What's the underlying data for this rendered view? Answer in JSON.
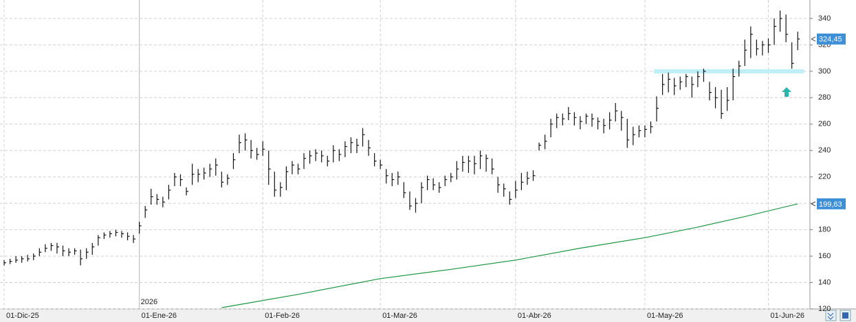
{
  "chart_data": {
    "type": "ohlc",
    "categories": [
      "01-Dic-25",
      null,
      null,
      null,
      null,
      null,
      null,
      null,
      null,
      null,
      null,
      null,
      null,
      null,
      null,
      null,
      null,
      null,
      null,
      null,
      null,
      null,
      null,
      "01-Ene-26",
      null,
      null,
      null,
      null,
      null,
      null,
      null,
      null,
      null,
      null,
      null,
      null,
      null,
      null,
      null,
      null,
      null,
      null,
      null,
      null,
      "01-Feb-26",
      null,
      null,
      null,
      null,
      null,
      null,
      null,
      null,
      null,
      null,
      null,
      null,
      null,
      null,
      null,
      null,
      null,
      null,
      null,
      "01-Mar-26",
      null,
      null,
      null,
      null,
      null,
      null,
      null,
      null,
      null,
      null,
      null,
      null,
      null,
      null,
      null,
      null,
      null,
      null,
      null,
      null,
      null,
      null,
      "01-Abr-26",
      null,
      null,
      null,
      null,
      null,
      null,
      null,
      null,
      null,
      null,
      null,
      null,
      null,
      null,
      null,
      null,
      null,
      null,
      null,
      null,
      null,
      "01-May-26",
      null,
      null,
      null,
      null,
      null,
      null,
      null,
      null,
      null,
      null,
      null,
      null,
      null,
      null,
      null,
      null,
      null,
      null,
      null,
      null,
      "01-Jun-26",
      null,
      null,
      null,
      null,
      null
    ],
    "year_label": {
      "index": 23,
      "label": "2026"
    },
    "high": [
      157,
      158,
      160,
      160,
      161,
      162,
      166,
      169,
      170,
      170,
      168,
      166,
      166,
      165,
      166,
      170,
      176,
      178,
      179,
      180,
      179,
      178,
      176,
      186,
      198,
      211,
      207,
      205,
      214,
      223,
      222,
      212,
      230,
      226,
      227,
      230,
      234,
      224,
      222,
      238,
      252,
      253,
      248,
      242,
      247,
      240,
      224,
      216,
      228,
      232,
      230,
      238,
      240,
      241,
      240,
      236,
      244,
      241,
      247,
      250,
      249,
      257,
      248,
      238,
      233,
      226,
      223,
      224,
      216,
      209,
      204,
      216,
      221,
      219,
      216,
      221,
      223,
      232,
      236,
      236,
      236,
      240,
      237,
      234,
      220,
      215,
      209,
      217,
      223,
      224,
      225,
      246,
      252,
      264,
      268,
      268,
      273,
      269,
      266,
      268,
      268,
      265,
      264,
      269,
      276,
      270,
      264,
      258,
      259,
      259,
      262,
      281,
      298,
      299,
      295,
      296,
      298,
      296,
      300,
      302,
      292,
      288,
      286,
      288,
      302,
      308,
      324,
      334,
      324,
      323,
      325,
      340,
      346,
      343,
      322,
      330
    ],
    "low": [
      153,
      154,
      155,
      155,
      156,
      157,
      160,
      163,
      164,
      162,
      160,
      160,
      161,
      153,
      158,
      161,
      168,
      173,
      174,
      175,
      174,
      172,
      170,
      177,
      189,
      199,
      199,
      197,
      203,
      213,
      213,
      206,
      214,
      216,
      218,
      220,
      221,
      212,
      214,
      226,
      238,
      240,
      234,
      233,
      236,
      214,
      205,
      205,
      210,
      222,
      222,
      226,
      230,
      232,
      231,
      228,
      231,
      232,
      235,
      238,
      238,
      243,
      236,
      228,
      226,
      215,
      213,
      214,
      204,
      195,
      193,
      200,
      210,
      210,
      208,
      213,
      216,
      218,
      224,
      223,
      222,
      226,
      224,
      222,
      208,
      205,
      199,
      204,
      210,
      214,
      217,
      240,
      241,
      250,
      257,
      259,
      263,
      259,
      256,
      260,
      258,
      256,
      253,
      256,
      262,
      255,
      242,
      244,
      250,
      250,
      253,
      262,
      282,
      284,
      282,
      286,
      288,
      280,
      288,
      292,
      278,
      272,
      264,
      270,
      278,
      296,
      304,
      310,
      312,
      312,
      314,
      320,
      330,
      322,
      302,
      316
    ],
    "close": [
      155,
      156,
      157,
      158,
      158,
      160,
      163,
      166,
      168,
      167,
      164,
      163,
      164,
      158,
      163,
      167,
      174,
      176,
      177,
      178,
      177,
      175,
      173,
      183,
      195,
      205,
      203,
      201,
      210,
      220,
      218,
      209,
      222,
      222,
      223,
      226,
      229,
      216,
      219,
      233,
      246,
      248,
      240,
      237,
      241,
      226,
      210,
      212,
      224,
      229,
      226,
      234,
      236,
      238,
      236,
      232,
      240,
      237,
      243,
      246,
      244,
      252,
      242,
      232,
      229,
      221,
      218,
      220,
      208,
      198,
      200,
      212,
      218,
      214,
      212,
      218,
      220,
      226,
      231,
      232,
      230,
      236,
      234,
      226,
      214,
      211,
      203,
      210,
      216,
      219,
      221,
      244,
      247,
      260,
      265,
      264,
      268,
      265,
      262,
      266,
      264,
      262,
      259,
      263,
      270,
      265,
      248,
      252,
      255,
      256,
      258,
      272,
      290,
      294,
      289,
      292,
      296,
      290,
      296,
      300,
      284,
      280,
      268,
      278,
      296,
      304,
      316,
      328,
      317,
      320,
      320,
      334,
      340,
      328,
      306,
      324.45
    ],
    "color": "#111111",
    "ma": {
      "x": [
        37,
        50,
        64,
        76,
        87,
        98,
        109,
        118,
        126,
        135
      ],
      "values": [
        121,
        131,
        143,
        150,
        157,
        166,
        174,
        182,
        190,
        199.63
      ],
      "color": "#1a9641"
    },
    "price_tags": [
      {
        "value": 324.45,
        "label": "324,45"
      },
      {
        "value": 199.63,
        "label": "199,63"
      }
    ],
    "tag_color": "#3d8fd6",
    "hline": {
      "value": 300,
      "from": 111,
      "color": "#bfeef7"
    },
    "ylim": [
      120,
      354
    ],
    "yticks": [
      120,
      140,
      160,
      180,
      200,
      220,
      240,
      260,
      280,
      300,
      320,
      340
    ],
    "grid": true
  }
}
